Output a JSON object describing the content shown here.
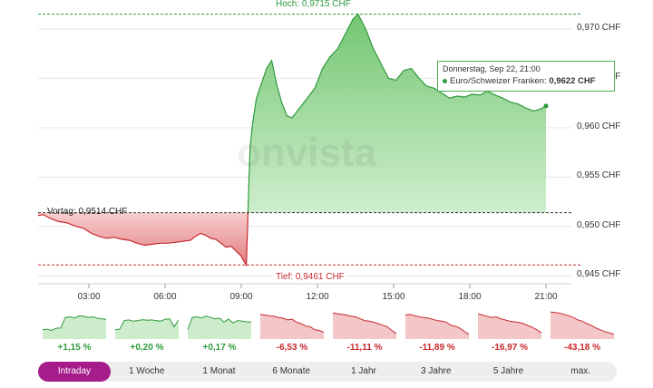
{
  "chart_data": {
    "type": "area",
    "yticks": [
      "0,970 CHF",
      "0,965 CHF",
      "0,960 CHF",
      "0,955 CHF",
      "0,950 CHF",
      "0,945 CHF"
    ],
    "ytick_values": [
      0.97,
      0.965,
      0.96,
      0.955,
      0.95,
      0.945
    ],
    "ylim": [
      0.9442,
      0.9722
    ],
    "xticks": [
      "03:00",
      "06:00",
      "09:00",
      "12:00",
      "15:00",
      "18:00",
      "21:00"
    ],
    "xtick_hours": [
      3,
      6,
      9,
      12,
      15,
      18,
      21
    ],
    "xlim_hours": [
      1.0,
      22.0
    ],
    "high_label": "Hoch: 0,9715 CHF",
    "high_value": 0.9715,
    "low_label": "Tief: 0,9461 CHF",
    "low_value": 0.9461,
    "prev_label": "Vortag: 0,9514 CHF",
    "prev_value": 0.9514,
    "series": [
      {
        "points": [
          [
            1.0,
            0.9511
          ],
          [
            1.2,
            0.9512
          ],
          [
            1.5,
            0.9508
          ],
          [
            1.8,
            0.9505
          ],
          [
            2.1,
            0.9504
          ],
          [
            2.4,
            0.9501
          ],
          [
            2.8,
            0.9498
          ],
          [
            3.1,
            0.9493
          ],
          [
            3.4,
            0.949
          ],
          [
            3.7,
            0.9488
          ],
          [
            4.0,
            0.9489
          ],
          [
            4.3,
            0.9487
          ],
          [
            4.6,
            0.9486
          ],
          [
            4.9,
            0.9483
          ],
          [
            5.2,
            0.9481
          ],
          [
            5.5,
            0.9482
          ],
          [
            5.8,
            0.9483
          ],
          [
            6.1,
            0.9483
          ],
          [
            6.4,
            0.9484
          ],
          [
            6.7,
            0.9485
          ],
          [
            7.0,
            0.9486
          ],
          [
            7.2,
            0.949
          ],
          [
            7.4,
            0.9493
          ],
          [
            7.6,
            0.9491
          ],
          [
            7.8,
            0.9488
          ],
          [
            8.0,
            0.9487
          ],
          [
            8.2,
            0.9483
          ],
          [
            8.4,
            0.9479
          ],
          [
            8.6,
            0.948
          ],
          [
            8.8,
            0.9475
          ],
          [
            9.0,
            0.947
          ],
          [
            9.1,
            0.9465
          ],
          [
            9.2,
            0.9461
          ],
          [
            9.25,
            0.95
          ],
          [
            9.3,
            0.9545
          ],
          [
            9.35,
            0.958
          ],
          [
            9.45,
            0.9605
          ],
          [
            9.6,
            0.963
          ],
          [
            9.8,
            0.9645
          ],
          [
            10.0,
            0.966
          ],
          [
            10.2,
            0.9668
          ],
          [
            10.4,
            0.9643
          ],
          [
            10.6,
            0.9625
          ],
          [
            10.8,
            0.9612
          ],
          [
            11.0,
            0.961
          ],
          [
            11.3,
            0.962
          ],
          [
            11.6,
            0.963
          ],
          [
            11.9,
            0.964
          ],
          [
            12.2,
            0.966
          ],
          [
            12.5,
            0.9672
          ],
          [
            12.8,
            0.968
          ],
          [
            13.1,
            0.9695
          ],
          [
            13.4,
            0.971
          ],
          [
            13.6,
            0.9715
          ],
          [
            13.9,
            0.97
          ],
          [
            14.2,
            0.968
          ],
          [
            14.5,
            0.9665
          ],
          [
            14.8,
            0.965
          ],
          [
            15.1,
            0.9648
          ],
          [
            15.4,
            0.9658
          ],
          [
            15.7,
            0.966
          ],
          [
            16.0,
            0.965
          ],
          [
            16.3,
            0.9642
          ],
          [
            16.6,
            0.964
          ],
          [
            16.9,
            0.9635
          ],
          [
            17.2,
            0.963
          ],
          [
            17.5,
            0.9632
          ],
          [
            17.8,
            0.9631
          ],
          [
            18.1,
            0.9634
          ],
          [
            18.4,
            0.9633
          ],
          [
            18.7,
            0.9637
          ],
          [
            19.0,
            0.9633
          ],
          [
            19.3,
            0.963
          ],
          [
            19.6,
            0.9626
          ],
          [
            19.9,
            0.9624
          ],
          [
            20.2,
            0.962
          ],
          [
            20.5,
            0.9617
          ],
          [
            20.8,
            0.9619
          ],
          [
            21.0,
            0.9622
          ]
        ]
      }
    ],
    "colors": {
      "up_line": "#2e9a3c",
      "up_fill": "#7fcf7c",
      "down_line": "#c8282d",
      "down_fill": "#e98a8c",
      "grid": "#e6e6e6"
    }
  },
  "tooltip": {
    "date": "Donnerstag, Sep 22, 21:00",
    "series": "Euro/Schweizer Franken:",
    "value": "0,9622 CHF"
  },
  "sparklines": [
    {
      "label": "+1,15 %",
      "dir": "pos",
      "values": [
        0.3,
        0.32,
        0.28,
        0.35,
        0.36,
        0.7,
        0.72,
        0.68,
        0.75,
        0.74,
        0.7,
        0.72,
        0.68,
        0.66,
        0.64
      ]
    },
    {
      "label": "+0,20 %",
      "dir": "pos",
      "values": [
        0.3,
        0.32,
        0.6,
        0.62,
        0.58,
        0.6,
        0.63,
        0.61,
        0.62,
        0.6,
        0.58,
        0.64,
        0.66,
        0.4,
        0.62
      ]
    },
    {
      "label": "+0,17 %",
      "dir": "pos",
      "values": [
        0.3,
        0.7,
        0.72,
        0.68,
        0.75,
        0.7,
        0.66,
        0.68,
        0.55,
        0.65,
        0.52,
        0.6,
        0.58,
        0.56,
        0.55
      ]
    },
    {
      "label": "-6,53 %",
      "dir": "neg",
      "values": [
        0.8,
        0.78,
        0.75,
        0.74,
        0.7,
        0.68,
        0.62,
        0.64,
        0.55,
        0.5,
        0.42,
        0.4,
        0.3,
        0.28,
        0.22
      ]
    },
    {
      "label": "-11,11 %",
      "dir": "neg",
      "values": [
        0.85,
        0.82,
        0.8,
        0.78,
        0.74,
        0.72,
        0.66,
        0.6,
        0.58,
        0.55,
        0.5,
        0.45,
        0.4,
        0.28,
        0.18
      ]
    },
    {
      "label": "-11,89 %",
      "dir": "neg",
      "values": [
        0.78,
        0.8,
        0.76,
        0.72,
        0.7,
        0.68,
        0.64,
        0.6,
        0.58,
        0.55,
        0.45,
        0.42,
        0.35,
        0.25,
        0.15
      ]
    },
    {
      "label": "-16,97 %",
      "dir": "neg",
      "values": [
        0.82,
        0.78,
        0.74,
        0.7,
        0.72,
        0.66,
        0.62,
        0.58,
        0.56,
        0.54,
        0.5,
        0.44,
        0.38,
        0.3,
        0.2
      ]
    },
    {
      "label": "-43,18 %",
      "dir": "neg",
      "values": [
        0.88,
        0.86,
        0.84,
        0.8,
        0.76,
        0.7,
        0.62,
        0.58,
        0.5,
        0.44,
        0.36,
        0.3,
        0.24,
        0.2,
        0.16
      ]
    }
  ],
  "ranges": [
    {
      "label": "Intraday",
      "active": true
    },
    {
      "label": "1 Woche",
      "active": false
    },
    {
      "label": "1 Monat",
      "active": false
    },
    {
      "label": "6 Monate",
      "active": false
    },
    {
      "label": "1 Jahr",
      "active": false
    },
    {
      "label": "3 Jahre",
      "active": false
    },
    {
      "label": "5 Jahre",
      "active": false
    },
    {
      "label": "max.",
      "active": false
    }
  ]
}
